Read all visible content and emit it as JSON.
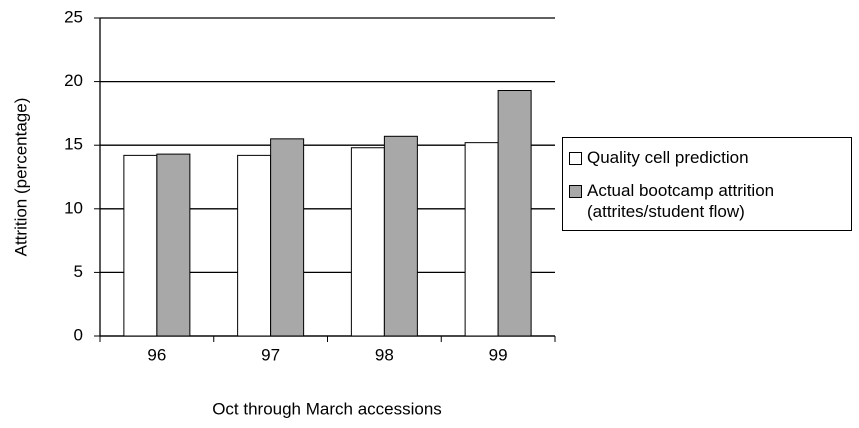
{
  "chart_data": {
    "type": "bar",
    "x_label": "Oct through March accessions",
    "y_label": "Attrition (percentage)",
    "categories": [
      "96",
      "97",
      "98",
      "99"
    ],
    "series": [
      {
        "name": "Quality cell prediction",
        "color": "#ffffff",
        "values": [
          14.2,
          14.2,
          14.8,
          15.2
        ]
      },
      {
        "name": "Actual bootcamp attrition (attrites/student flow)",
        "color": "#a8a8a8",
        "values": [
          14.3,
          15.5,
          15.7,
          19.3
        ]
      }
    ],
    "ylim": [
      0,
      25
    ],
    "yticks": [
      0,
      5,
      10,
      15,
      20,
      25
    ],
    "grid": true,
    "legend": "right"
  }
}
